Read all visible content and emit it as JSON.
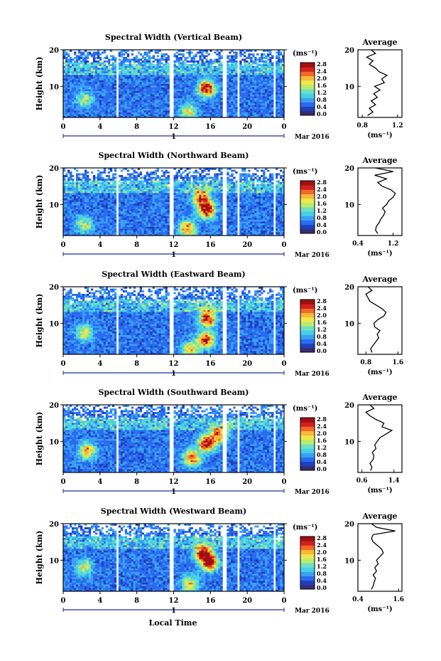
{
  "figure": {
    "xlabel": "Local Time",
    "date_label": "Mar 2016",
    "day_marker": "1",
    "unit_label": "(ms⁻¹)",
    "average_title": "Average",
    "height_label": "Height (km)"
  },
  "colorbar": {
    "ticks": [
      "2.8",
      "2.4",
      "2.0",
      "1.6",
      "1.2",
      "0.8",
      "0.4",
      "0.0"
    ],
    "colors": [
      "#3b2b6e",
      "#1f3fbf",
      "#2a6cf0",
      "#3aa0f5",
      "#46d0e8",
      "#6fe0c0",
      "#b8ec70",
      "#f0e84a",
      "#f8b838",
      "#f06a28",
      "#d42020",
      "#a01010"
    ]
  },
  "chart_data": [
    {
      "type": "heatmap",
      "title": "Spectral Width (Vertical Beam)",
      "xlabel": "",
      "ylabel": "Height (km)",
      "x_ticks": [
        "0",
        "4",
        "8",
        "12",
        "16",
        "20",
        "0"
      ],
      "y_ticks": [
        "20",
        "10"
      ],
      "xlim": [
        0,
        24
      ],
      "ylim": [
        1.5,
        20
      ],
      "clim": [
        0,
        3.0
      ],
      "gaps_hours": [
        5.9,
        11.8,
        17.6,
        19.0,
        23.0
      ],
      "hot_spots": [
        [
          15.6,
          9.5,
          2.6
        ],
        [
          13.6,
          3.0,
          1.4
        ],
        [
          2.3,
          6.5,
          1.1
        ]
      ],
      "average": {
        "title": "Average",
        "xlabel": "(ms⁻¹)",
        "x_ticks": [
          "0.8",
          "1.2"
        ],
        "y_ticks": [
          "20",
          "10"
        ],
        "xlim": [
          0.75,
          1.25
        ],
        "height_km": [
          2,
          3,
          4,
          5,
          6,
          7,
          8,
          9,
          10,
          11,
          12,
          13,
          14,
          15,
          16,
          17,
          18,
          19,
          20
        ],
        "values": [
          0.86,
          0.92,
          0.88,
          0.95,
          0.9,
          0.97,
          0.93,
          1.0,
          0.94,
          1.05,
          1.02,
          1.08,
          0.99,
          0.95,
          0.88,
          0.92,
          0.85,
          0.95,
          0.9
        ]
      }
    },
    {
      "type": "heatmap",
      "title": "Spectral Width (Northward Beam)",
      "xlabel": "",
      "ylabel": "Height (km)",
      "x_ticks": [
        "0",
        "4",
        "8",
        "12",
        "16",
        "20",
        "0"
      ],
      "y_ticks": [
        "20",
        "10"
      ],
      "xlim": [
        0,
        24
      ],
      "ylim": [
        1.5,
        20
      ],
      "clim": [
        0,
        3.0
      ],
      "gaps_hours": [
        5.9,
        11.8,
        17.6,
        19.0,
        23.0
      ],
      "hot_spots": [
        [
          15.6,
          8.5,
          2.8
        ],
        [
          13.5,
          3.5,
          2.0
        ],
        [
          2.3,
          4.5,
          1.2
        ],
        [
          15.0,
          12.0,
          2.2
        ]
      ],
      "average": {
        "title": "Average",
        "xlabel": "(ms⁻¹)",
        "x_ticks": [
          "0.4",
          "1.2"
        ],
        "y_ticks": [
          "20",
          "10"
        ],
        "xlim": [
          0.4,
          1.4
        ],
        "height_km": [
          2,
          3,
          4,
          5,
          6,
          7,
          8,
          9,
          10,
          11,
          12,
          13,
          14,
          15,
          16,
          17,
          18,
          19,
          20
        ],
        "values": [
          0.85,
          0.8,
          0.82,
          0.88,
          0.92,
          0.98,
          1.02,
          0.96,
          1.05,
          1.1,
          1.2,
          1.25,
          1.15,
          0.95,
          0.85,
          1.05,
          0.78,
          1.2,
          0.8
        ]
      }
    },
    {
      "type": "heatmap",
      "title": "Spectral Width (Eastward Beam)",
      "xlabel": "",
      "ylabel": "Height (km)",
      "x_ticks": [
        "0",
        "4",
        "8",
        "12",
        "16",
        "20",
        "0"
      ],
      "y_ticks": [
        "20",
        "10"
      ],
      "xlim": [
        0,
        24
      ],
      "ylim": [
        1.5,
        20
      ],
      "clim": [
        0,
        3.0
      ],
      "gaps_hours": [
        5.9,
        11.8,
        17.6,
        19.0,
        23.0
      ],
      "hot_spots": [
        [
          15.7,
          11.5,
          2.6
        ],
        [
          15.5,
          5.5,
          2.4
        ],
        [
          2.3,
          7.5,
          1.4
        ],
        [
          13.8,
          3.0,
          1.6
        ]
      ],
      "average": {
        "title": "Average",
        "xlabel": "(ms⁻¹)",
        "x_ticks": [
          "0.8",
          "1.6"
        ],
        "y_ticks": [
          "20",
          "10"
        ],
        "xlim": [
          0.6,
          1.7
        ],
        "height_km": [
          2,
          3,
          4,
          5,
          6,
          7,
          8,
          9,
          10,
          11,
          12,
          13,
          14,
          15,
          16,
          17,
          18,
          19,
          20
        ],
        "values": [
          0.95,
          0.92,
          0.98,
          1.05,
          1.12,
          1.08,
          1.15,
          1.02,
          1.0,
          1.1,
          1.25,
          1.3,
          1.2,
          1.05,
          0.9,
          0.85,
          0.8,
          0.95,
          0.85
        ]
      }
    },
    {
      "type": "heatmap",
      "title": "Spectral Width (Southward Beam)",
      "xlabel": "",
      "ylabel": "Height (km)",
      "x_ticks": [
        "0",
        "4",
        "8",
        "12",
        "16",
        "20",
        "0"
      ],
      "y_ticks": [
        "20",
        "10"
      ],
      "xlim": [
        0,
        24
      ],
      "ylim": [
        1.5,
        20
      ],
      "clim": [
        0,
        3.0
      ],
      "gaps_hours": [
        5.9,
        11.8,
        17.6,
        19.0,
        23.0
      ],
      "hot_spots": [
        [
          15.6,
          9.5,
          2.7
        ],
        [
          14.0,
          5.5,
          2.2
        ],
        [
          2.6,
          7.5,
          1.8
        ],
        [
          17.0,
          12.0,
          2.2
        ]
      ],
      "average": {
        "title": "Average",
        "xlabel": "(ms⁻¹)",
        "x_ticks": [
          "0.6",
          "1.4"
        ],
        "y_ticks": [
          "20",
          "10"
        ],
        "xlim": [
          0.5,
          1.6
        ],
        "height_km": [
          2,
          3,
          4,
          5,
          6,
          7,
          8,
          9,
          10,
          11,
          12,
          13,
          14,
          15,
          16,
          17,
          18,
          19,
          20
        ],
        "values": [
          0.82,
          0.85,
          0.8,
          0.88,
          0.9,
          0.86,
          0.95,
          0.92,
          0.98,
          1.05,
          1.2,
          1.35,
          1.1,
          1.15,
          0.95,
          0.8,
          0.7,
          0.9,
          0.8
        ]
      }
    },
    {
      "type": "heatmap",
      "title": "Spectral Width (Westward Beam)",
      "xlabel": "Local Time",
      "ylabel": "Height (km)",
      "x_ticks": [
        "0",
        "4",
        "8",
        "12",
        "16",
        "20",
        "0"
      ],
      "y_ticks": [
        "20",
        "10"
      ],
      "xlim": [
        0,
        24
      ],
      "ylim": [
        1.5,
        20
      ],
      "clim": [
        0,
        3.0
      ],
      "gaps_hours": [
        5.9,
        11.8,
        17.6,
        19.0,
        23.0
      ],
      "hot_spots": [
        [
          15.9,
          9.5,
          2.8
        ],
        [
          15.2,
          12.0,
          2.5
        ],
        [
          2.3,
          8.0,
          1.3
        ],
        [
          13.8,
          3.5,
          1.6
        ]
      ],
      "average": {
        "title": "Average",
        "xlabel": "(ms⁻¹)",
        "x_ticks": [
          "0.4",
          "1.6"
        ],
        "y_ticks": [
          "20",
          "10"
        ],
        "xlim": [
          0.4,
          1.7
        ],
        "height_km": [
          2,
          3,
          4,
          5,
          6,
          7,
          8,
          9,
          10,
          11,
          12,
          13,
          14,
          15,
          16,
          17,
          18,
          19,
          20
        ],
        "values": [
          0.8,
          0.85,
          0.88,
          0.92,
          0.85,
          0.95,
          0.9,
          1.0,
          0.95,
          1.05,
          1.15,
          1.1,
          0.98,
          0.85,
          0.8,
          0.85,
          1.5,
          0.95,
          0.8
        ]
      }
    }
  ]
}
